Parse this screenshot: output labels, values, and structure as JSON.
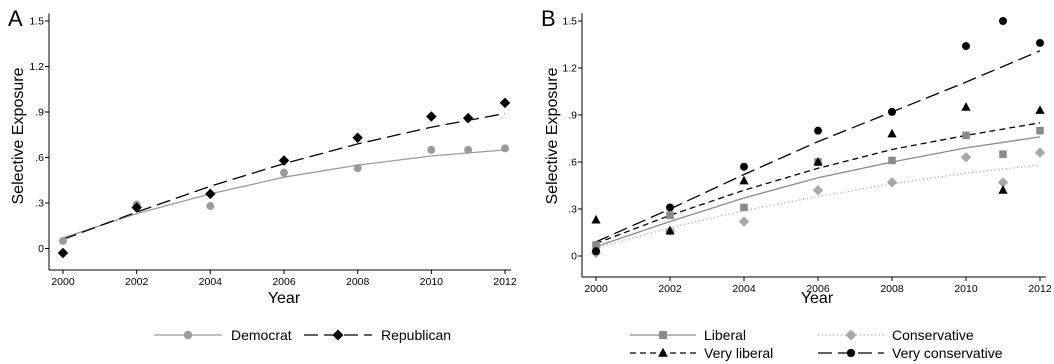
{
  "chart_data": [
    {
      "panel_label": "A",
      "type": "scatter",
      "xlabel": "Year",
      "ylabel": "Selective Exposure",
      "xlim": [
        2000,
        2012
      ],
      "ylim": [
        -0.05,
        1.55
      ],
      "x_ticks": [
        "2000",
        "2002",
        "2004",
        "2006",
        "2008",
        "2010",
        "2012"
      ],
      "y_ticks": [
        "0",
        ".3",
        ".6",
        ".9",
        "1.2",
        "1.5"
      ],
      "grid": false,
      "legend_position": "bottom",
      "series": [
        {
          "name": "Democrat",
          "color": "#9b9b9b",
          "marker": "circle",
          "line_style": "solid",
          "points": [
            {
              "x": 2000,
              "y": 0.05
            },
            {
              "x": 2002,
              "y": 0.29
            },
            {
              "x": 2004,
              "y": 0.28
            },
            {
              "x": 2006,
              "y": 0.5
            },
            {
              "x": 2008,
              "y": 0.53
            },
            {
              "x": 2010,
              "y": 0.65
            },
            {
              "x": 2011,
              "y": 0.65
            },
            {
              "x": 2012,
              "y": 0.66
            }
          ],
          "fit": {
            "x": [
              2000,
              2002,
              2004,
              2006,
              2008,
              2010,
              2012
            ],
            "y": [
              0.07,
              0.23,
              0.36,
              0.47,
              0.55,
              0.61,
              0.65
            ]
          }
        },
        {
          "name": "Republican",
          "color": "#000000",
          "marker": "diamond",
          "line_style": "longdash",
          "points": [
            {
              "x": 2000,
              "y": -0.03
            },
            {
              "x": 2002,
              "y": 0.27
            },
            {
              "x": 2004,
              "y": 0.36
            },
            {
              "x": 2006,
              "y": 0.58
            },
            {
              "x": 2008,
              "y": 0.73
            },
            {
              "x": 2010,
              "y": 0.87
            },
            {
              "x": 2011,
              "y": 0.86
            },
            {
              "x": 2012,
              "y": 0.96
            }
          ],
          "fit": {
            "x": [
              2000,
              2002,
              2004,
              2006,
              2008,
              2010,
              2012
            ],
            "y": [
              0.06,
              0.24,
              0.41,
              0.56,
              0.69,
              0.8,
              0.89
            ]
          }
        }
      ]
    },
    {
      "panel_label": "B",
      "type": "scatter",
      "xlabel": "Year",
      "ylabel": "Selective Exposure",
      "xlim": [
        2000,
        2012
      ],
      "ylim": [
        -0.05,
        1.55
      ],
      "x_ticks": [
        "2000",
        "2002",
        "2004",
        "2006",
        "2008",
        "2010",
        "2012"
      ],
      "y_ticks": [
        "0",
        ".3",
        ".6",
        ".9",
        "1.2",
        "1.5"
      ],
      "grid": false,
      "legend_position": "bottom",
      "series": [
        {
          "name": "Liberal",
          "color": "#8a8a8a",
          "marker": "square",
          "line_style": "solid",
          "points": [
            {
              "x": 2000,
              "y": 0.07
            },
            {
              "x": 2002,
              "y": 0.26
            },
            {
              "x": 2004,
              "y": 0.31
            },
            {
              "x": 2006,
              "y": 0.6
            },
            {
              "x": 2008,
              "y": 0.61
            },
            {
              "x": 2010,
              "y": 0.77
            },
            {
              "x": 2011,
              "y": 0.65
            },
            {
              "x": 2012,
              "y": 0.8
            }
          ],
          "fit": {
            "x": [
              2000,
              2002,
              2004,
              2006,
              2008,
              2010,
              2012
            ],
            "y": [
              0.06,
              0.22,
              0.37,
              0.5,
              0.6,
              0.69,
              0.76
            ]
          }
        },
        {
          "name": "Conservative",
          "color": "#a8a8a8",
          "marker": "diamond",
          "line_style": "dotted",
          "points": [
            {
              "x": 2000,
              "y": 0.02
            },
            {
              "x": 2002,
              "y": 0.16
            },
            {
              "x": 2004,
              "y": 0.22
            },
            {
              "x": 2006,
              "y": 0.42
            },
            {
              "x": 2008,
              "y": 0.47
            },
            {
              "x": 2010,
              "y": 0.63
            },
            {
              "x": 2011,
              "y": 0.47
            },
            {
              "x": 2012,
              "y": 0.66
            }
          ],
          "fit": {
            "x": [
              2000,
              2002,
              2004,
              2006,
              2008,
              2010,
              2012
            ],
            "y": [
              0.05,
              0.18,
              0.29,
              0.38,
              0.46,
              0.53,
              0.58
            ]
          }
        },
        {
          "name": "Very liberal",
          "color": "#000000",
          "marker": "triangle",
          "line_style": "dashed",
          "points": [
            {
              "x": 2000,
              "y": 0.23
            },
            {
              "x": 2002,
              "y": 0.16
            },
            {
              "x": 2004,
              "y": 0.48
            },
            {
              "x": 2006,
              "y": 0.6
            },
            {
              "x": 2008,
              "y": 0.78
            },
            {
              "x": 2010,
              "y": 0.95
            },
            {
              "x": 2011,
              "y": 0.42
            },
            {
              "x": 2012,
              "y": 0.93
            }
          ],
          "fit": {
            "x": [
              2000,
              2002,
              2004,
              2006,
              2008,
              2010,
              2012
            ],
            "y": [
              0.08,
              0.26,
              0.42,
              0.56,
              0.68,
              0.77,
              0.85
            ]
          }
        },
        {
          "name": "Very conservative",
          "color": "#000000",
          "marker": "circle",
          "line_style": "longdash",
          "points": [
            {
              "x": 2000,
              "y": 0.03
            },
            {
              "x": 2002,
              "y": 0.31
            },
            {
              "x": 2004,
              "y": 0.57
            },
            {
              "x": 2006,
              "y": 0.8
            },
            {
              "x": 2008,
              "y": 0.92
            },
            {
              "x": 2010,
              "y": 1.34
            },
            {
              "x": 2011,
              "y": 1.5
            },
            {
              "x": 2012,
              "y": 1.36
            }
          ],
          "fit": {
            "x": [
              2000,
              2002,
              2004,
              2006,
              2008,
              2010,
              2012
            ],
            "y": [
              0.09,
              0.3,
              0.52,
              0.73,
              0.92,
              1.11,
              1.31
            ]
          }
        }
      ]
    }
  ]
}
